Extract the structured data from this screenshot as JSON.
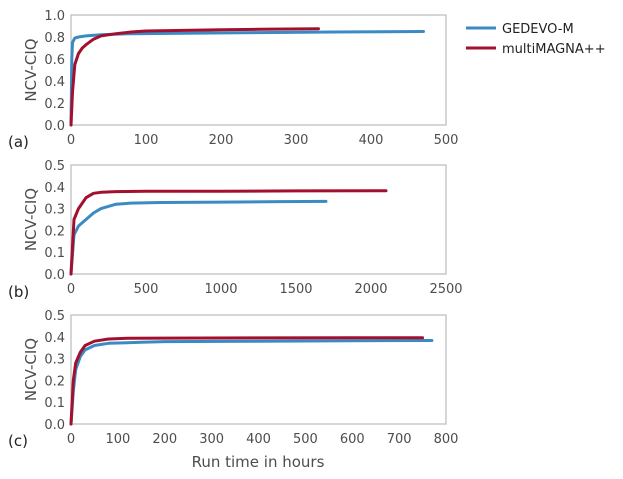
{
  "colors": {
    "gedevo": "#3a8bc4",
    "multimagna": "#a3102e",
    "frame": "#bbbbbb",
    "text": "#4d4d4d"
  },
  "legend": {
    "location": "top-right",
    "entries": [
      "GEDEVO-M",
      "multiMAGNA++"
    ]
  },
  "figure": {
    "xlabel": "Run time in hours"
  },
  "chart_data": [
    {
      "type": "line",
      "panel_label": "(a)",
      "ylabel": "NCV-CIQ",
      "xlim": [
        0,
        500
      ],
      "ylim": [
        0.0,
        1.0
      ],
      "xticks": [
        0,
        100,
        200,
        300,
        400,
        500
      ],
      "yticks": [
        0.0,
        0.2,
        0.4,
        0.6,
        0.8,
        1.0
      ],
      "yticklabels": [
        "0.0",
        "0.2",
        "0.4",
        "0.6",
        "0.8",
        "1.0"
      ],
      "series": [
        {
          "name": "GEDEVO-M",
          "color": "#3a8bc4",
          "points": [
            [
              0,
              0.0
            ],
            [
              1,
              0.6
            ],
            [
              2,
              0.75
            ],
            [
              5,
              0.79
            ],
            [
              10,
              0.8
            ],
            [
              20,
              0.81
            ],
            [
              40,
              0.82
            ],
            [
              80,
              0.83
            ],
            [
              150,
              0.835
            ],
            [
              250,
              0.84
            ],
            [
              350,
              0.845
            ],
            [
              470,
              0.85
            ]
          ]
        },
        {
          "name": "multiMAGNA++",
          "color": "#a3102e",
          "points": [
            [
              0,
              0.0
            ],
            [
              2,
              0.3
            ],
            [
              5,
              0.55
            ],
            [
              10,
              0.65
            ],
            [
              15,
              0.7
            ],
            [
              20,
              0.73
            ],
            [
              30,
              0.78
            ],
            [
              40,
              0.81
            ],
            [
              60,
              0.83
            ],
            [
              80,
              0.845
            ],
            [
              100,
              0.855
            ],
            [
              150,
              0.86
            ],
            [
              200,
              0.865
            ],
            [
              250,
              0.87
            ],
            [
              330,
              0.875
            ]
          ]
        }
      ]
    },
    {
      "type": "line",
      "panel_label": "(b)",
      "ylabel": "NCV-CIQ",
      "xlim": [
        0,
        2500
      ],
      "ylim": [
        0.0,
        0.5
      ],
      "xticks": [
        0,
        500,
        1000,
        1500,
        2000,
        2500
      ],
      "yticks": [
        0.0,
        0.1,
        0.2,
        0.3,
        0.4,
        0.5
      ],
      "yticklabels": [
        "0.0",
        "0.1",
        "0.2",
        "0.3",
        "0.4",
        "0.5"
      ],
      "series": [
        {
          "name": "GEDEVO-M",
          "color": "#3a8bc4",
          "points": [
            [
              0,
              0.0
            ],
            [
              20,
              0.18
            ],
            [
              50,
              0.22
            ],
            [
              100,
              0.25
            ],
            [
              150,
              0.28
            ],
            [
              200,
              0.3
            ],
            [
              300,
              0.32
            ],
            [
              400,
              0.325
            ],
            [
              600,
              0.328
            ],
            [
              1000,
              0.33
            ],
            [
              1400,
              0.332
            ],
            [
              1700,
              0.333
            ]
          ]
        },
        {
          "name": "multiMAGNA++",
          "color": "#a3102e",
          "points": [
            [
              0,
              0.0
            ],
            [
              20,
              0.25
            ],
            [
              50,
              0.3
            ],
            [
              100,
              0.35
            ],
            [
              150,
              0.37
            ],
            [
              200,
              0.375
            ],
            [
              300,
              0.378
            ],
            [
              500,
              0.38
            ],
            [
              1000,
              0.38
            ],
            [
              1500,
              0.381
            ],
            [
              2100,
              0.382
            ]
          ]
        }
      ]
    },
    {
      "type": "line",
      "panel_label": "(c)",
      "ylabel": "NCV-CIQ",
      "xlabel": "Run time in hours",
      "xlim": [
        0,
        800
      ],
      "ylim": [
        0.0,
        0.5
      ],
      "xticks": [
        0,
        100,
        200,
        300,
        400,
        500,
        600,
        700,
        800
      ],
      "yticks": [
        0.0,
        0.1,
        0.2,
        0.3,
        0.4,
        0.5
      ],
      "yticklabels": [
        "0.0",
        "0.1",
        "0.2",
        "0.3",
        "0.4",
        "0.5"
      ],
      "series": [
        {
          "name": "GEDEVO-M",
          "color": "#3a8bc4",
          "points": [
            [
              0,
              0.0
            ],
            [
              5,
              0.15
            ],
            [
              10,
              0.25
            ],
            [
              20,
              0.31
            ],
            [
              30,
              0.34
            ],
            [
              50,
              0.36
            ],
            [
              80,
              0.37
            ],
            [
              150,
              0.375
            ],
            [
              200,
              0.378
            ],
            [
              400,
              0.38
            ],
            [
              600,
              0.382
            ],
            [
              770,
              0.383
            ]
          ]
        },
        {
          "name": "multiMAGNA++",
          "color": "#a3102e",
          "points": [
            [
              0,
              0.0
            ],
            [
              5,
              0.2
            ],
            [
              10,
              0.28
            ],
            [
              20,
              0.33
            ],
            [
              30,
              0.36
            ],
            [
              50,
              0.38
            ],
            [
              80,
              0.39
            ],
            [
              120,
              0.393
            ],
            [
              200,
              0.394
            ],
            [
              400,
              0.395
            ],
            [
              600,
              0.396
            ],
            [
              750,
              0.396
            ]
          ]
        }
      ]
    }
  ]
}
